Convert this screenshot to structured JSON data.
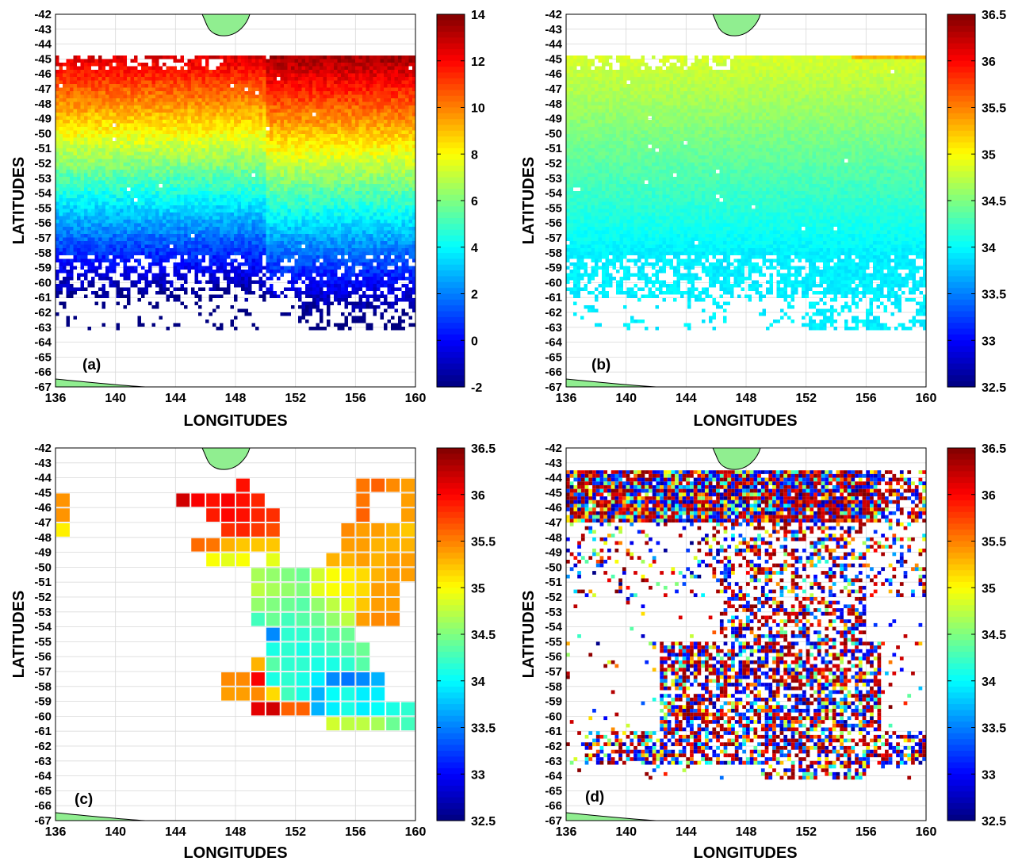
{
  "colormap": "jet",
  "land_color": "#90EE90",
  "grid_color": "#d9d9d9",
  "panels": [
    {
      "id": "a",
      "label": "(a)",
      "xlabel": "LONGITUDES",
      "ylabel": "LATITUDES",
      "xlim": [
        136,
        160
      ],
      "ylim": [
        -67,
        -42
      ],
      "xticks": [
        "136",
        "140",
        "144",
        "148",
        "152",
        "156",
        "160"
      ],
      "yticks": [
        "-42",
        "-43",
        "-44",
        "-45",
        "-46",
        "-47",
        "-48",
        "-49",
        "-50",
        "-51",
        "-52",
        "-53",
        "-54",
        "-55",
        "-56",
        "-57",
        "-58",
        "-59",
        "-60",
        "-61",
        "-62",
        "-63",
        "-64",
        "-65",
        "-66",
        "-67"
      ],
      "colorbar": {
        "min": -2,
        "max": 14,
        "ticks": [
          "14",
          "12",
          "10",
          "8",
          "6",
          "4",
          "2",
          "0",
          "-2"
        ]
      }
    },
    {
      "id": "b",
      "label": "(b)",
      "xlabel": "LONGITUDES",
      "ylabel": "LATITUDES",
      "xlim": [
        136,
        160
      ],
      "ylim": [
        -67,
        -42
      ],
      "xticks": [
        "136",
        "140",
        "144",
        "148",
        "152",
        "156",
        "160"
      ],
      "yticks": [
        "-42",
        "-43",
        "-44",
        "-45",
        "-46",
        "-47",
        "-48",
        "-49",
        "-50",
        "-51",
        "-52",
        "-53",
        "-54",
        "-55",
        "-56",
        "-57",
        "-58",
        "-59",
        "-60",
        "-61",
        "-62",
        "-63",
        "-64",
        "-65",
        "-66",
        "-67"
      ],
      "colorbar": {
        "min": 32.5,
        "max": 36.5,
        "ticks": [
          "36.5",
          "36",
          "35.5",
          "35",
          "34.5",
          "34",
          "33.5",
          "33",
          "32.5"
        ]
      }
    },
    {
      "id": "c",
      "label": "(c)",
      "xlabel": "LONGITUDES",
      "ylabel": "LATITUDES",
      "xlim": [
        136,
        160
      ],
      "ylim": [
        -67,
        -42
      ],
      "xticks": [
        "136",
        "140",
        "144",
        "148",
        "152",
        "156",
        "160"
      ],
      "yticks": [
        "-42",
        "-43",
        "-44",
        "-45",
        "-46",
        "-47",
        "-48",
        "-49",
        "-50",
        "-51",
        "-52",
        "-53",
        "-54",
        "-55",
        "-56",
        "-57",
        "-58",
        "-59",
        "-60",
        "-61",
        "-62",
        "-63",
        "-64",
        "-65",
        "-66",
        "-67"
      ],
      "colorbar": {
        "min": 32.5,
        "max": 36.5,
        "ticks": [
          "36.5",
          "36",
          "35.5",
          "35",
          "34.5",
          "34",
          "33.5",
          "33",
          "32.5"
        ]
      }
    },
    {
      "id": "d",
      "label": "(d)",
      "xlabel": "LONGITUDES",
      "ylabel": "LATITUDES",
      "xlim": [
        136,
        160
      ],
      "ylim": [
        -67,
        -42
      ],
      "xticks": [
        "136",
        "140",
        "144",
        "148",
        "152",
        "156",
        "160"
      ],
      "yticks": [
        "-42",
        "-43",
        "-44",
        "-45",
        "-46",
        "-47",
        "-48",
        "-49",
        "-50",
        "-51",
        "-52",
        "-53",
        "-54",
        "-55",
        "-56",
        "-57",
        "-58",
        "-59",
        "-60",
        "-61",
        "-62",
        "-63",
        "-64",
        "-65",
        "-66",
        "-67"
      ],
      "colorbar": {
        "min": 32.5,
        "max": 36.5,
        "ticks": [
          "36.5",
          "36",
          "35.5",
          "35",
          "34.5",
          "34",
          "33.5",
          "33",
          "32.5"
        ]
      }
    }
  ]
}
